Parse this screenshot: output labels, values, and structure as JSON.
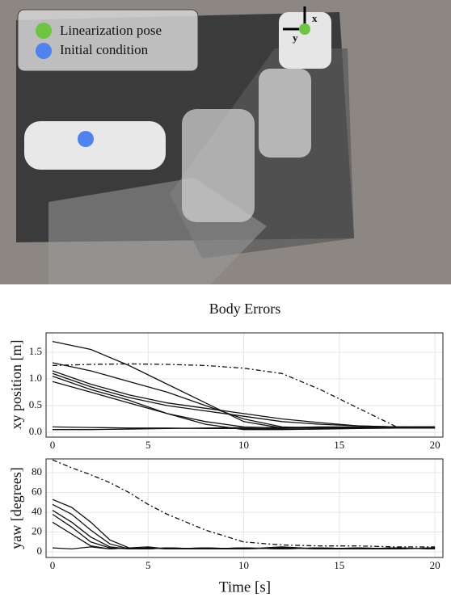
{
  "photo": {
    "legend": [
      "Linearization pose",
      "Initial condition"
    ],
    "axis_labels": [
      "x",
      "y"
    ]
  },
  "chart_data": [
    {
      "type": "line",
      "title": "Body Errors",
      "ylabel": "xy position [m]",
      "x": [
        0,
        2,
        4,
        6,
        8,
        10,
        12,
        14,
        16,
        18,
        20
      ],
      "xlim": [
        -0.34,
        20.42
      ],
      "ylim": [
        -0.09,
        1.86
      ],
      "xticks": [
        0,
        5,
        10,
        15,
        20
      ],
      "yticks": [
        {
          "value": 0,
          "label": "0.0"
        },
        0.5,
        {
          "value": 1,
          "label": "1.0"
        },
        1.5
      ],
      "grid": true,
      "series": [
        {
          "color": "#111111",
          "dash": true,
          "values": [
            1.25,
            1.27,
            1.28,
            1.27,
            1.25,
            1.2,
            1.1,
            0.8,
            0.45,
            0.1,
            0.1
          ]
        },
        {
          "color": "#111111",
          "values": [
            1.7,
            1.55,
            1.25,
            0.9,
            0.55,
            0.2,
            0.08,
            0.08,
            0.08,
            0.08,
            0.08
          ]
        },
        {
          "color": "#111111",
          "values": [
            1.3,
            1.15,
            0.95,
            0.75,
            0.5,
            0.25,
            0.1,
            0.08,
            0.08,
            0.08,
            0.08
          ]
        },
        {
          "color": "#111111",
          "values": [
            1.15,
            0.9,
            0.7,
            0.55,
            0.45,
            0.35,
            0.25,
            0.18,
            0.12,
            0.1,
            0.1
          ]
        },
        {
          "color": "#111111",
          "values": [
            1.1,
            0.85,
            0.65,
            0.5,
            0.4,
            0.3,
            0.2,
            0.15,
            0.12,
            0.1,
            0.1
          ]
        },
        {
          "color": "#111111",
          "values": [
            1.05,
            0.8,
            0.6,
            0.35,
            0.15,
            0.05,
            0.05,
            0.06,
            0.07,
            0.08,
            0.08
          ]
        },
        {
          "color": "#111111",
          "values": [
            0.95,
            0.75,
            0.55,
            0.35,
            0.2,
            0.1,
            0.08,
            0.08,
            0.08,
            0.08,
            0.08
          ]
        },
        {
          "color": "#111111",
          "values": [
            0.1,
            0.09,
            0.08,
            0.08,
            0.07,
            0.07,
            0.07,
            0.08,
            0.08,
            0.09,
            0.1
          ]
        },
        {
          "color": "#111111",
          "values": [
            0.05,
            0.05,
            0.06,
            0.07,
            0.08,
            0.09,
            0.09,
            0.1,
            0.1,
            0.1,
            0.1
          ]
        }
      ]
    },
    {
      "type": "line",
      "ylabel": "yaw [degrees]",
      "xlabel": "Time [s]",
      "x": [
        0,
        1,
        2,
        3,
        4,
        5,
        6,
        8,
        10,
        12,
        14,
        16,
        18,
        20
      ],
      "xlim": [
        -0.34,
        20.42
      ],
      "ylim": [
        -5.7,
        94
      ],
      "xticks": [
        0,
        5,
        10,
        15,
        20
      ],
      "yticks": [
        0,
        20,
        40,
        60,
        80
      ],
      "grid": true,
      "series": [
        {
          "color": "#111111",
          "dash": true,
          "values": [
            93,
            85,
            78,
            70,
            60,
            48,
            38,
            22,
            10,
            7,
            6,
            6,
            5,
            5
          ]
        },
        {
          "color": "#111111",
          "values": [
            53,
            45,
            30,
            12,
            4,
            3,
            4,
            3,
            4,
            3,
            4,
            3,
            4,
            3
          ]
        },
        {
          "color": "#111111",
          "values": [
            48,
            38,
            22,
            8,
            3,
            4,
            3,
            4,
            3,
            4,
            3,
            4,
            3,
            4
          ]
        },
        {
          "color": "#111111",
          "values": [
            42,
            30,
            15,
            5,
            3,
            3,
            4,
            3,
            3,
            4,
            3,
            3,
            4,
            3
          ]
        },
        {
          "color": "#111111",
          "values": [
            38,
            25,
            10,
            4,
            3,
            4,
            3,
            3,
            4,
            3,
            4,
            3,
            3,
            4
          ]
        },
        {
          "color": "#111111",
          "values": [
            30,
            18,
            6,
            3,
            4,
            3,
            4,
            3,
            4,
            3,
            4,
            3,
            4,
            3
          ]
        },
        {
          "color": "#111111",
          "values": [
            4,
            3,
            5,
            3,
            4,
            5,
            3,
            4,
            3,
            5,
            3,
            4,
            3,
            4
          ]
        }
      ]
    }
  ]
}
